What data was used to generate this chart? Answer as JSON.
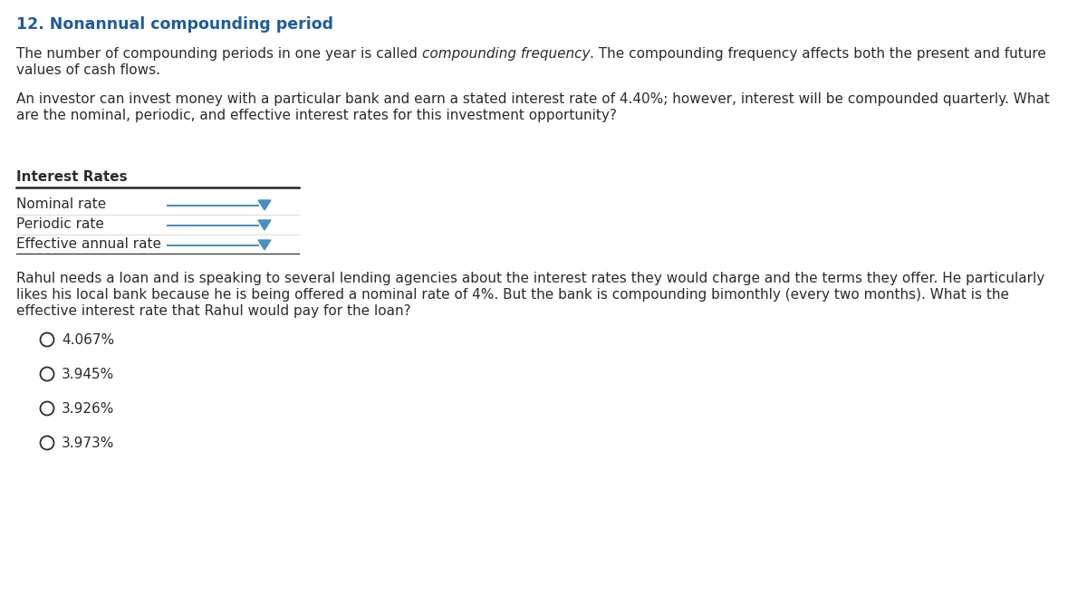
{
  "title": "12. Nonannual compounding period",
  "title_color": "#1F5C99",
  "bg_color": "#FFFFFF",
  "para1_before_italic": "The number of compounding periods in one year is called ",
  "para1_italic": "compounding frequency",
  "para1_after_italic": ". The compounding frequency affects both the present and future",
  "para1_line2": "values of cash flows.",
  "para2_line1": "An investor can invest money with a particular bank and earn a stated interest rate of 4.40%; however, interest will be compounded quarterly. What",
  "para2_line2": "are the nominal, periodic, and effective interest rates for this investment opportunity?",
  "table_header": "Interest Rates",
  "table_rows": [
    "Nominal rate",
    "Periodic rate",
    "Effective annual rate"
  ],
  "dropdown_color": "#4A8FC0",
  "para3_line1": "Rahul needs a loan and is speaking to several lending agencies about the interest rates they would charge and the terms they offer. He particularly",
  "para3_line2": "likes his local bank because he is being offered a nominal rate of 4%. But the bank is compounding bimonthly (every two months). What is the",
  "para3_line3": "effective interest rate that Rahul would pay for the loan?",
  "options": [
    "4.067%",
    "3.945%",
    "3.926%",
    "3.973%"
  ],
  "font_size_title": 12.5,
  "font_size_body": 11.0,
  "font_size_table": 11.0,
  "text_color": "#2B2B2B",
  "table_line_color": "#222222",
  "fig_width": 12.0,
  "fig_height": 6.57,
  "dpi": 100
}
